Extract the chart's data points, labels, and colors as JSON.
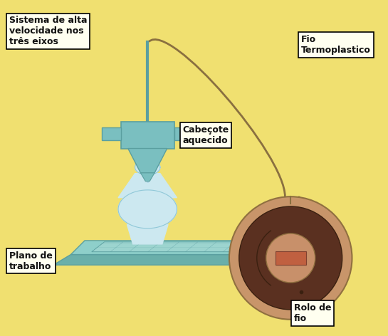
{
  "background_color": "#f0e070",
  "fig_width": 5.45,
  "fig_height": 4.72,
  "labels": {
    "sistema": "Sistema de alta\nvelocidade nos\ntrês eixos",
    "cabecote": "Cabeçote\naquecido",
    "plano": "Plano de\ntrabalho",
    "fio": "Fio\nTermoplastico",
    "rolo": "Rolo de\nfio"
  },
  "nozzle_color": "#7abfc0",
  "nozzle_dark": "#5a9fa0",
  "print_color": "#cce8f0",
  "print_outline": "#90c8d8",
  "platform_top": "#8ecfca",
  "platform_side": "#6aafaa",
  "platform_grid": "#a8ddd8",
  "spool_outer": "#c8956a",
  "spool_filament": "#5a3020",
  "spool_hub": "#c8906a",
  "spool_axle": "#c06040",
  "wire_color": "#8a7040",
  "text_fontsize": 9,
  "text_color": "#111111",
  "box_facecolor": "#fffff0",
  "box_edgecolor": "#000000"
}
